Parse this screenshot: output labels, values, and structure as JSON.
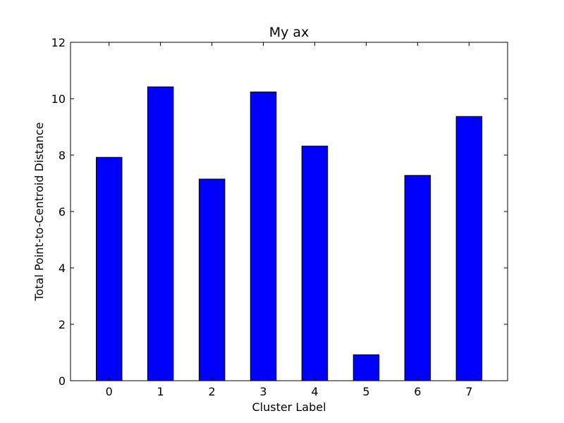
{
  "chart_data": {
    "type": "bar",
    "title": "My ax",
    "xlabel": "Cluster Label",
    "ylabel": "Total Point-to-Centroid Distance",
    "categories": [
      "0",
      "1",
      "2",
      "3",
      "4",
      "5",
      "6",
      "7"
    ],
    "values": [
      7.92,
      10.42,
      7.15,
      10.24,
      8.32,
      0.92,
      7.28,
      9.37
    ],
    "ylim": [
      0,
      12
    ],
    "yticks": [
      "0",
      "2",
      "4",
      "6",
      "8",
      "10",
      "12"
    ],
    "grid": false,
    "bar_color": "#0000ff",
    "edge_color": "#000000"
  }
}
